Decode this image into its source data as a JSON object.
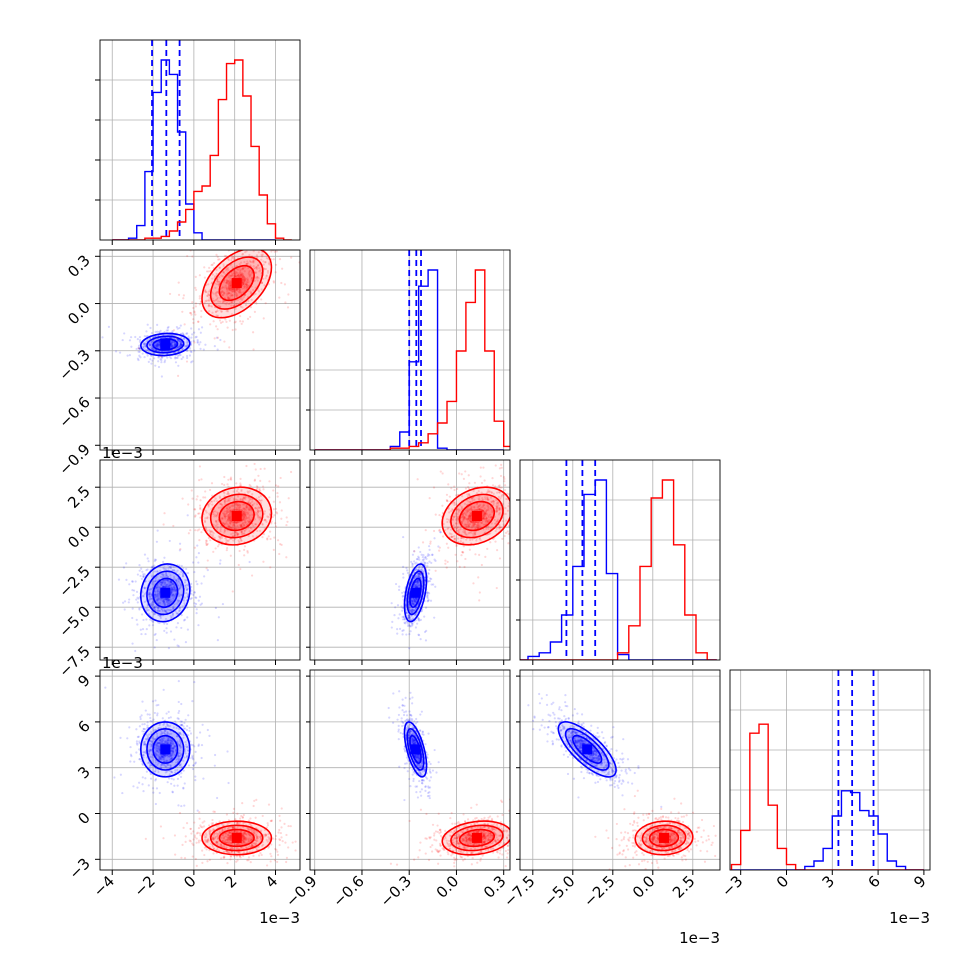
{
  "chart_data": {
    "type": "corner",
    "title": "",
    "series": [
      {
        "color": "#0000ff",
        "marginals": [
          {
            "bins": [
              -4.0,
              -3.6,
              -3.2,
              -2.8,
              -2.4,
              -2.0,
              -1.6,
              -1.2,
              -0.8,
              -0.4,
              0.0,
              0.4,
              0.8,
              1.2,
              1.6,
              2.0,
              2.4,
              2.8,
              3.2,
              3.6,
              4.0
            ],
            "counts": [
              0,
              0,
              1,
              8,
              38,
              82,
              100,
              92,
              60,
              20,
              4,
              0,
              0,
              0,
              0,
              0,
              0,
              0,
              0,
              0
            ],
            "quantiles": [
              -2.05,
              -1.35,
              -0.7
            ]
          },
          {
            "bins": [
              -0.9,
              -0.84,
              -0.78,
              -0.72,
              -0.66,
              -0.6,
              -0.54,
              -0.48,
              -0.42,
              -0.36,
              -0.3,
              -0.24,
              -0.18,
              -0.12,
              -0.06,
              0.0,
              0.06,
              0.12,
              0.18,
              0.24,
              0.3
            ],
            "counts": [
              0,
              0,
              0,
              0,
              0,
              0,
              0,
              0,
              2,
              10,
              49,
              91,
              100,
              1,
              0,
              0,
              0,
              0,
              0,
              0
            ],
            "quantiles": [
              -0.3,
              -0.255,
              -0.225
            ]
          },
          {
            "bins": [
              -8.5,
              -7.8,
              -7.1,
              -6.4,
              -5.7,
              -5.0,
              -4.3,
              -3.6,
              -2.9,
              -2.2,
              -1.5,
              -0.8,
              -0.1,
              0.6,
              1.3,
              2.0,
              2.7,
              3.4,
              4.0
            ],
            "counts": [
              0,
              2,
              4,
              10,
              25,
              52,
              92,
              100,
              48,
              3,
              0,
              0,
              0,
              0,
              0,
              0,
              0,
              0
            ],
            "quantiles": [
              -5.4,
              -4.4,
              -3.6
            ]
          },
          {
            "bins": [
              -3.6,
              -3.0,
              -2.4,
              -1.8,
              -1.2,
              -0.6,
              0.0,
              0.6,
              1.2,
              1.8,
              2.4,
              3.0,
              3.6,
              4.2,
              4.8,
              5.4,
              6.0,
              6.6,
              7.2,
              7.8,
              8.4,
              9.0
            ],
            "counts": [
              0,
              0,
              0,
              0,
              0,
              0,
              0,
              0,
              2,
              5,
              12,
              30,
              44,
              43,
              33,
              30,
              20,
              5,
              2,
              0,
              0
            ],
            "quantiles": [
              3.4,
              4.3,
              5.7
            ]
          }
        ],
        "centers": [
          -1.4,
          -0.26,
          -4.1,
          4.2
        ],
        "sigmas": [
          0.6,
          0.035,
          0.9,
          0.9
        ],
        "corr": [
          [
            1.0,
            0.1,
            0.1,
            0.0
          ],
          [
            0.1,
            1.0,
            0.45,
            -0.6
          ],
          [
            0.1,
            0.45,
            1.0,
            -0.75
          ],
          [
            0.0,
            -0.6,
            -0.75,
            1.0
          ]
        ]
      },
      {
        "color": "#ff0000",
        "marginals": [
          {
            "bins": [
              -4.0,
              -3.6,
              -3.2,
              -2.8,
              -2.4,
              -2.0,
              -1.6,
              -1.2,
              -0.8,
              -0.4,
              0.0,
              0.4,
              0.8,
              1.2,
              1.6,
              2.0,
              2.4,
              2.8,
              3.2,
              3.6,
              4.0,
              4.4,
              4.8
            ],
            "counts": [
              0,
              0,
              0,
              0,
              1,
              1,
              2,
              5,
              10,
              17,
              27,
              30,
              47,
              78,
              98,
              100,
              80,
              52,
              25,
              9,
              1,
              0
            ],
            "quantiles": []
          },
          {
            "bins": [
              -0.9,
              -0.84,
              -0.78,
              -0.72,
              -0.66,
              -0.6,
              -0.54,
              -0.48,
              -0.42,
              -0.36,
              -0.3,
              -0.24,
              -0.18,
              -0.12,
              -0.06,
              0.0,
              0.06,
              0.12,
              0.18,
              0.24,
              0.3,
              0.36
            ],
            "counts": [
              0,
              0,
              0,
              0,
              0,
              0,
              0,
              0,
              1,
              1,
              2,
              4,
              9,
              15,
              27,
              55,
              82,
              100,
              55,
              16,
              2
            ],
            "quantiles": []
          },
          {
            "bins": [
              -8.5,
              -7.8,
              -7.1,
              -6.4,
              -5.7,
              -5.0,
              -4.3,
              -3.6,
              -2.9,
              -2.2,
              -1.5,
              -0.8,
              -0.1,
              0.6,
              1.3,
              2.0,
              2.7,
              3.4,
              4.0
            ],
            "counts": [
              0,
              0,
              0,
              0,
              0,
              0,
              0,
              0,
              0,
              4,
              19,
              52,
              90,
              100,
              64,
              25,
              4,
              0
            ],
            "quantiles": []
          },
          {
            "bins": [
              -3.6,
              -3.0,
              -2.4,
              -1.8,
              -1.2,
              -0.6,
              0.0,
              0.6,
              1.2,
              1.8,
              2.4,
              3.0,
              3.6,
              4.2,
              4.8,
              5.4,
              6.0,
              6.6,
              7.2,
              7.8,
              8.4,
              9.0
            ],
            "counts": [
              3,
              22,
              76,
              81,
              36,
              12,
              3,
              0,
              0,
              0,
              0,
              0,
              0,
              0,
              0,
              0,
              0,
              0,
              0,
              0,
              0
            ],
            "quantiles": []
          }
        ],
        "centers": [
          2.1,
          0.13,
          0.7,
          -1.6
        ],
        "sigmas": [
          0.85,
          0.11,
          0.9,
          0.55
        ],
        "corr": [
          [
            1.0,
            0.45,
            0.1,
            0.0
          ],
          [
            0.45,
            1.0,
            0.25,
            0.2
          ],
          [
            0.1,
            0.25,
            1.0,
            0.05
          ],
          [
            0.0,
            0.2,
            0.05,
            1.0
          ]
        ]
      }
    ],
    "params": [
      {
        "lim": [
          -4.6,
          5.2
        ],
        "ticks": [
          -4,
          -2,
          0,
          2,
          4
        ],
        "tick_labels": [
          "−4",
          "−2",
          "0",
          "2",
          "4"
        ],
        "offset": "1e−3"
      },
      {
        "lim": [
          -0.93,
          0.34
        ],
        "ticks": [
          -0.9,
          -0.6,
          -0.3,
          0.0,
          0.3
        ],
        "tick_labels": [
          "−0.9",
          "−0.6",
          "−0.3",
          "0.0",
          "0.3"
        ],
        "offset": ""
      },
      {
        "lim": [
          -8.3,
          4.2
        ],
        "ticks": [
          -7.5,
          -5.0,
          -2.5,
          0.0,
          2.5
        ],
        "tick_labels": [
          "−7.5",
          "−5.0",
          "−2.5",
          "0.0",
          "2.5"
        ],
        "offset": "1e−3"
      },
      {
        "lim": [
          -3.7,
          9.4
        ],
        "ticks": [
          -3,
          0,
          3,
          6,
          9
        ],
        "tick_labels": [
          "−3",
          "0",
          "3",
          "6",
          "9"
        ],
        "offset": "1e−3"
      }
    ],
    "grid": true,
    "legend": "none",
    "xlabel": "",
    "ylabel": ""
  }
}
